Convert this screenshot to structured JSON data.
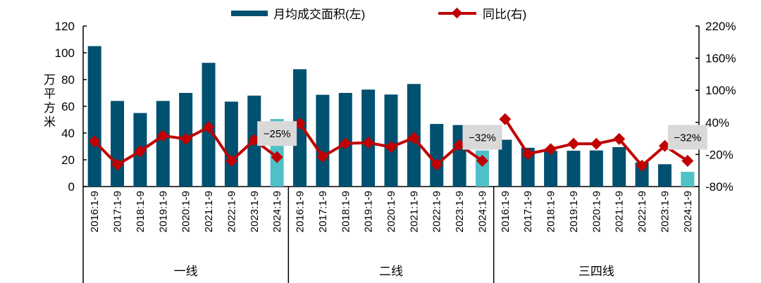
{
  "chart_data": {
    "type": "bar+line",
    "legend": {
      "placement": "top",
      "entries": [
        "月均成交面积(左)",
        "同比(右)"
      ]
    },
    "ylabel_left": "万平方米",
    "ylim_left": [
      0,
      120
    ],
    "yticks_left": [
      "0",
      "20",
      "40",
      "60",
      "80",
      "100",
      "120"
    ],
    "ylim_right": [
      -80,
      220
    ],
    "yticks_right": [
      "-80%",
      "-20%",
      "40%",
      "100%",
      "160%",
      "220%"
    ],
    "categories": [
      "2016:1-9",
      "2017:1-9",
      "2018:1-9",
      "2019:1-9",
      "2020:1-9",
      "2021:1-9",
      "2022:1-9",
      "2023:1-9",
      "2024:1-9"
    ],
    "groups": [
      {
        "name": "一线",
        "area": [
          105,
          64,
          55,
          64,
          70,
          92.5,
          63.5,
          68,
          50.5
        ],
        "yoy": [
          4.5,
          -39,
          -14,
          15,
          9,
          31,
          -32,
          7,
          -25
        ],
        "annotation": "−25%"
      },
      {
        "name": "二线",
        "area": [
          87.7,
          68.6,
          70,
          72.5,
          68.8,
          76.7,
          46.8,
          46,
          27
        ],
        "yoy": [
          38,
          -24,
          0.5,
          2,
          -6,
          11,
          -39,
          -2,
          -32
        ],
        "annotation": "−32%"
      },
      {
        "name": "三四线",
        "area": [
          35,
          29,
          26.7,
          26.8,
          27,
          29.5,
          18,
          16.7,
          11
        ],
        "yoy": [
          46,
          -19,
          -10,
          0,
          0,
          9,
          -41,
          -4,
          -32
        ],
        "annotation": "−32%"
      }
    ],
    "grid": false
  },
  "colors": {
    "bar": "#00506f",
    "bar_highlight": "#4fc0c8",
    "line": "#c00000",
    "annotation_bg": "#d9d9d9"
  }
}
